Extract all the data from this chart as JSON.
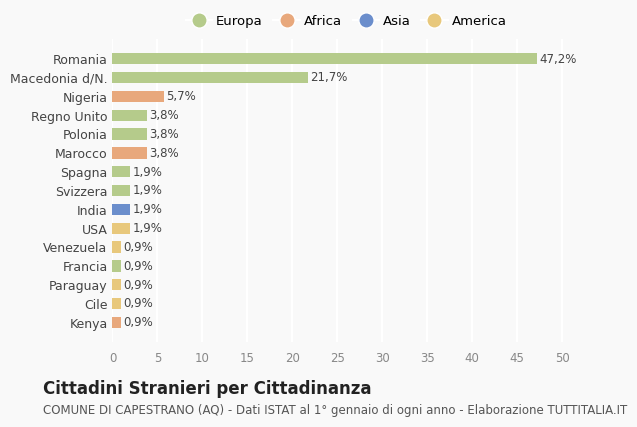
{
  "categories": [
    "Kenya",
    "Cile",
    "Paraguay",
    "Francia",
    "Venezuela",
    "USA",
    "India",
    "Svizzera",
    "Spagna",
    "Marocco",
    "Polonia",
    "Regno Unito",
    "Nigeria",
    "Macedonia d/N.",
    "Romania"
  ],
  "values": [
    0.9,
    0.9,
    0.9,
    0.9,
    0.9,
    1.9,
    1.9,
    1.9,
    1.9,
    3.8,
    3.8,
    3.8,
    5.7,
    21.7,
    47.2
  ],
  "labels": [
    "0,9%",
    "0,9%",
    "0,9%",
    "0,9%",
    "0,9%",
    "1,9%",
    "1,9%",
    "1,9%",
    "1,9%",
    "3,8%",
    "3,8%",
    "3,8%",
    "5,7%",
    "21,7%",
    "47,2%"
  ],
  "continent": [
    "Africa",
    "America",
    "America",
    "Europa",
    "America",
    "America",
    "Asia",
    "Europa",
    "Europa",
    "Africa",
    "Europa",
    "Europa",
    "Africa",
    "Europa",
    "Europa"
  ],
  "bar_color_map": {
    "Europa": "#b5cb8b",
    "Africa": "#e8a87c",
    "Asia": "#6b8ecc",
    "America": "#e8c87c"
  },
  "legend_items": [
    {
      "label": "Europa",
      "color": "#b5cb8b"
    },
    {
      "label": "Africa",
      "color": "#e8a87c"
    },
    {
      "label": "Asia",
      "color": "#6b8ecc"
    },
    {
      "label": "America",
      "color": "#e8c87c"
    }
  ],
  "title": "Cittadini Stranieri per Cittadinanza",
  "subtitle": "COMUNE DI CAPESTRANO (AQ) - Dati ISTAT al 1° gennaio di ogni anno - Elaborazione TUTTITALIA.IT",
  "xlim": [
    0,
    52
  ],
  "xticks": [
    0,
    5,
    10,
    15,
    20,
    25,
    30,
    35,
    40,
    45,
    50
  ],
  "background_color": "#f9f9f9",
  "grid_color": "#ffffff",
  "label_fontsize": 8.5,
  "title_fontsize": 12,
  "subtitle_fontsize": 8.5
}
